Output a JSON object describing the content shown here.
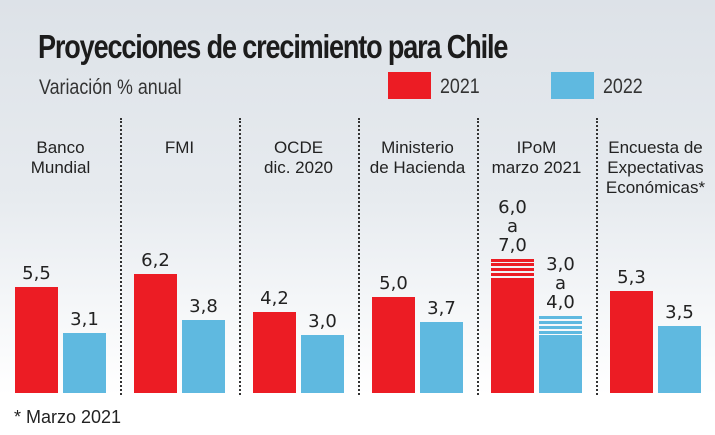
{
  "title": "Proyecciones de crecimiento para Chile",
  "subtitle": "Variación % anual",
  "footnote": "* Marzo 2021",
  "colors": {
    "series_2021": "#ec1c24",
    "series_2022": "#5fb9e0"
  },
  "chart_data": {
    "type": "bar",
    "title": "Proyecciones de crecimiento para Chile",
    "subtitle": "Variación % anual",
    "xlabel": "",
    "ylabel": "Variación % anual",
    "ylim": [
      0,
      7.5
    ],
    "grid": false,
    "legend_position": "top-right",
    "categories": [
      "Banco\nMundial",
      "FMI",
      "OCDE\ndic. 2020",
      "Ministerio\nde Hacienda",
      "IPoM\nmarzo 2021",
      "Encuesta de\nExpectativas\nEconómicas*"
    ],
    "series": [
      {
        "name": "2021",
        "values": [
          5.5,
          6.2,
          4.2,
          5.0,
          6.0,
          5.3
        ],
        "range_max": [
          null,
          null,
          null,
          null,
          7.0,
          null
        ],
        "labels": [
          "5,5",
          "6,2",
          "4,2",
          "5,0",
          "6,0\na\n7,0",
          "5,3"
        ]
      },
      {
        "name": "2022",
        "values": [
          3.1,
          3.8,
          3.0,
          3.7,
          3.0,
          3.5
        ],
        "range_max": [
          null,
          null,
          null,
          null,
          4.0,
          null
        ],
        "labels": [
          "3,1",
          "3,8",
          "3,0",
          "3,7",
          "3,0\na\n4,0",
          "3,5"
        ]
      }
    ]
  }
}
